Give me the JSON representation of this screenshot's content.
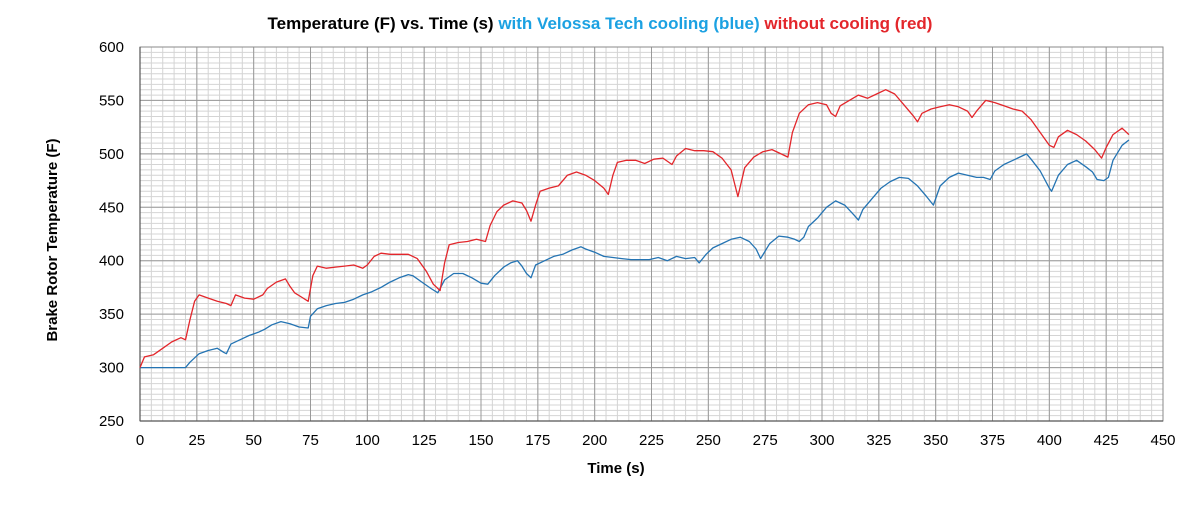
{
  "chart_data": {
    "type": "line",
    "title_parts": [
      {
        "text": "Temperature (F)  vs. Time (s) ",
        "color": "#000000"
      },
      {
        "text": "with Velossa Tech cooling (blue) ",
        "color": "#1ba1e2"
      },
      {
        "text": "without cooling (red)",
        "color": "#e3262b"
      }
    ],
    "xlabel": "Time (s)",
    "ylabel": "Brake Rotor Temperature (F)",
    "xlim": [
      0,
      450
    ],
    "ylim": [
      250,
      600
    ],
    "x_ticks": [
      "0",
      "25",
      "50",
      "75",
      "100",
      "125",
      "150",
      "175",
      "200",
      "225",
      "250",
      "275",
      "300",
      "325",
      "350",
      "375",
      "400",
      "425",
      "450"
    ],
    "y_ticks": [
      "250",
      "300",
      "350",
      "400",
      "450",
      "500",
      "550",
      "600"
    ],
    "grid": true,
    "colors": {
      "blue": "#2474b3",
      "red": "#e3262b"
    },
    "series": [
      {
        "color": "#2474b3",
        "points": [
          [
            0,
            300
          ],
          [
            20,
            300
          ],
          [
            22,
            305
          ],
          [
            26,
            313
          ],
          [
            30,
            316
          ],
          [
            34,
            318
          ],
          [
            37,
            314
          ],
          [
            38,
            313
          ],
          [
            40,
            322
          ],
          [
            45,
            327
          ],
          [
            48,
            330
          ],
          [
            52,
            333
          ],
          [
            55,
            336
          ],
          [
            58,
            340
          ],
          [
            62,
            343
          ],
          [
            66,
            341
          ],
          [
            70,
            338
          ],
          [
            74,
            337
          ],
          [
            75,
            348
          ],
          [
            78,
            355
          ],
          [
            82,
            358
          ],
          [
            86,
            360
          ],
          [
            90,
            361
          ],
          [
            94,
            364
          ],
          [
            98,
            368
          ],
          [
            102,
            371
          ],
          [
            106,
            375
          ],
          [
            110,
            380
          ],
          [
            114,
            384
          ],
          [
            118,
            387
          ],
          [
            120,
            386
          ],
          [
            124,
            380
          ],
          [
            128,
            374
          ],
          [
            131,
            370
          ],
          [
            134,
            382
          ],
          [
            138,
            388
          ],
          [
            142,
            388
          ],
          [
            146,
            384
          ],
          [
            150,
            379
          ],
          [
            153,
            378
          ],
          [
            156,
            386
          ],
          [
            160,
            394
          ],
          [
            163,
            398
          ],
          [
            166,
            400
          ],
          [
            168,
            395
          ],
          [
            170,
            388
          ],
          [
            172,
            384
          ],
          [
            174,
            396
          ],
          [
            178,
            400
          ],
          [
            182,
            404
          ],
          [
            186,
            406
          ],
          [
            190,
            410
          ],
          [
            194,
            413
          ],
          [
            196,
            411
          ],
          [
            200,
            408
          ],
          [
            204,
            404
          ],
          [
            208,
            403
          ],
          [
            212,
            402
          ],
          [
            216,
            401
          ],
          [
            220,
            401
          ],
          [
            224,
            401
          ],
          [
            228,
            403
          ],
          [
            232,
            400
          ],
          [
            236,
            404
          ],
          [
            240,
            402
          ],
          [
            244,
            403
          ],
          [
            246,
            398
          ],
          [
            249,
            406
          ],
          [
            252,
            412
          ],
          [
            256,
            416
          ],
          [
            260,
            420
          ],
          [
            264,
            422
          ],
          [
            268,
            418
          ],
          [
            271,
            411
          ],
          [
            273,
            402
          ],
          [
            277,
            416
          ],
          [
            281,
            423
          ],
          [
            285,
            422
          ],
          [
            288,
            420
          ],
          [
            290,
            418
          ],
          [
            292,
            422
          ],
          [
            294,
            432
          ],
          [
            298,
            440
          ],
          [
            302,
            450
          ],
          [
            306,
            456
          ],
          [
            310,
            452
          ],
          [
            314,
            443
          ],
          [
            316,
            438
          ],
          [
            318,
            448
          ],
          [
            322,
            458
          ],
          [
            326,
            468
          ],
          [
            330,
            474
          ],
          [
            334,
            478
          ],
          [
            338,
            477
          ],
          [
            342,
            470
          ],
          [
            346,
            460
          ],
          [
            349,
            452
          ],
          [
            352,
            470
          ],
          [
            356,
            478
          ],
          [
            360,
            482
          ],
          [
            364,
            480
          ],
          [
            368,
            478
          ],
          [
            371,
            478
          ],
          [
            374,
            476
          ],
          [
            376,
            484
          ],
          [
            380,
            490
          ],
          [
            384,
            494
          ],
          [
            388,
            498
          ],
          [
            390,
            500
          ],
          [
            392,
            495
          ],
          [
            396,
            484
          ],
          [
            400,
            468
          ],
          [
            401,
            465
          ],
          [
            404,
            480
          ],
          [
            408,
            490
          ],
          [
            412,
            494
          ],
          [
            416,
            488
          ],
          [
            419,
            483
          ],
          [
            421,
            476
          ],
          [
            424,
            475
          ],
          [
            426,
            478
          ],
          [
            428,
            494
          ],
          [
            432,
            508
          ],
          [
            435,
            513
          ]
        ]
      },
      {
        "color": "#e3262b",
        "points": [
          [
            0,
            300
          ],
          [
            2,
            310
          ],
          [
            6,
            312
          ],
          [
            10,
            318
          ],
          [
            14,
            324
          ],
          [
            18,
            328
          ],
          [
            20,
            326
          ],
          [
            22,
            345
          ],
          [
            24,
            362
          ],
          [
            26,
            368
          ],
          [
            30,
            365
          ],
          [
            34,
            362
          ],
          [
            38,
            360
          ],
          [
            40,
            358
          ],
          [
            42,
            368
          ],
          [
            46,
            365
          ],
          [
            50,
            364
          ],
          [
            54,
            368
          ],
          [
            56,
            374
          ],
          [
            60,
            380
          ],
          [
            64,
            383
          ],
          [
            66,
            376
          ],
          [
            68,
            370
          ],
          [
            71,
            366
          ],
          [
            74,
            362
          ],
          [
            76,
            386
          ],
          [
            78,
            395
          ],
          [
            82,
            393
          ],
          [
            86,
            394
          ],
          [
            90,
            395
          ],
          [
            94,
            396
          ],
          [
            98,
            393
          ],
          [
            100,
            396
          ],
          [
            103,
            404
          ],
          [
            106,
            407
          ],
          [
            110,
            406
          ],
          [
            114,
            406
          ],
          [
            118,
            406
          ],
          [
            122,
            402
          ],
          [
            126,
            390
          ],
          [
            129,
            378
          ],
          [
            132,
            372
          ],
          [
            134,
            398
          ],
          [
            136,
            415
          ],
          [
            140,
            417
          ],
          [
            144,
            418
          ],
          [
            148,
            420
          ],
          [
            152,
            418
          ],
          [
            154,
            433
          ],
          [
            157,
            446
          ],
          [
            160,
            452
          ],
          [
            164,
            456
          ],
          [
            168,
            454
          ],
          [
            170,
            447
          ],
          [
            172,
            437
          ],
          [
            174,
            452
          ],
          [
            176,
            465
          ],
          [
            180,
            468
          ],
          [
            184,
            470
          ],
          [
            188,
            480
          ],
          [
            192,
            483
          ],
          [
            196,
            480
          ],
          [
            200,
            475
          ],
          [
            204,
            468
          ],
          [
            206,
            462
          ],
          [
            208,
            480
          ],
          [
            210,
            492
          ],
          [
            214,
            494
          ],
          [
            218,
            494
          ],
          [
            222,
            491
          ],
          [
            226,
            495
          ],
          [
            230,
            496
          ],
          [
            234,
            490
          ],
          [
            236,
            498
          ],
          [
            240,
            505
          ],
          [
            244,
            503
          ],
          [
            248,
            503
          ],
          [
            252,
            502
          ],
          [
            256,
            496
          ],
          [
            260,
            485
          ],
          [
            263,
            460
          ],
          [
            266,
            487
          ],
          [
            270,
            497
          ],
          [
            274,
            502
          ],
          [
            278,
            504
          ],
          [
            282,
            500
          ],
          [
            285,
            497
          ],
          [
            287,
            520
          ],
          [
            290,
            538
          ],
          [
            294,
            546
          ],
          [
            298,
            548
          ],
          [
            302,
            546
          ],
          [
            304,
            538
          ],
          [
            306,
            535
          ],
          [
            308,
            545
          ],
          [
            312,
            550
          ],
          [
            316,
            555
          ],
          [
            320,
            552
          ],
          [
            324,
            556
          ],
          [
            328,
            560
          ],
          [
            332,
            556
          ],
          [
            336,
            546
          ],
          [
            340,
            536
          ],
          [
            342,
            530
          ],
          [
            344,
            538
          ],
          [
            348,
            542
          ],
          [
            352,
            544
          ],
          [
            356,
            546
          ],
          [
            360,
            544
          ],
          [
            364,
            540
          ],
          [
            366,
            534
          ],
          [
            368,
            540
          ],
          [
            372,
            550
          ],
          [
            376,
            548
          ],
          [
            380,
            545
          ],
          [
            384,
            542
          ],
          [
            388,
            540
          ],
          [
            392,
            532
          ],
          [
            396,
            520
          ],
          [
            400,
            508
          ],
          [
            402,
            506
          ],
          [
            404,
            516
          ],
          [
            408,
            522
          ],
          [
            412,
            518
          ],
          [
            416,
            512
          ],
          [
            420,
            504
          ],
          [
            423,
            496
          ],
          [
            425,
            506
          ],
          [
            428,
            518
          ],
          [
            432,
            524
          ],
          [
            435,
            518
          ]
        ]
      }
    ]
  }
}
